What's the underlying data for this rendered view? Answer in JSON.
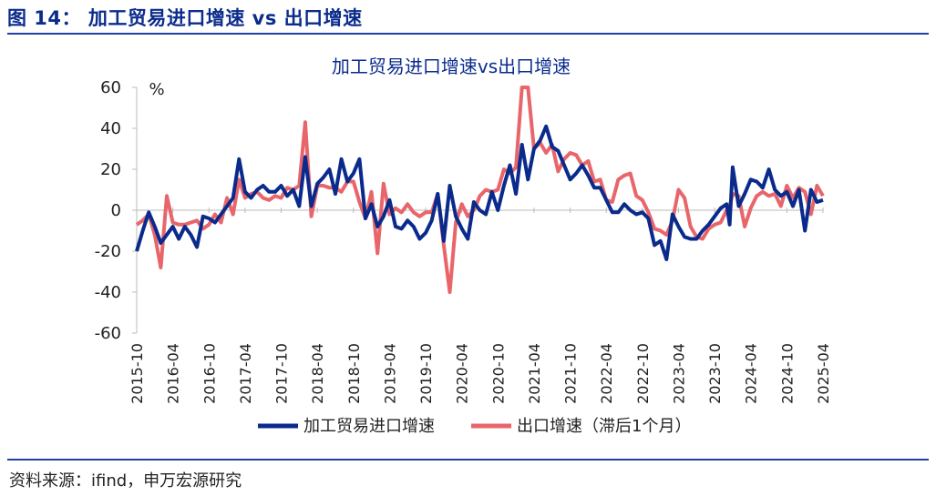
{
  "figure_title": "图 14：  加工贸易进口增速 vs 出口增速",
  "source": "资料来源：ifind，申万宏源研究",
  "chart_data": {
    "type": "line",
    "title": "加工贸易进口增速vs出口增速",
    "unit_label": "%",
    "ylim": [
      -60,
      60
    ],
    "yticks": [
      60,
      40,
      20,
      0,
      -20,
      -40,
      -60
    ],
    "xlim": [
      "2015-10",
      "2025-04"
    ],
    "xticks": [
      "2015-10",
      "2016-04",
      "2016-10",
      "2017-04",
      "2017-10",
      "2018-04",
      "2018-10",
      "2019-04",
      "2019-10",
      "2020-04",
      "2020-10",
      "2021-04",
      "2021-10",
      "2022-04",
      "2022-10",
      "2023-04",
      "2023-10",
      "2024-04",
      "2024-10",
      "2025-04"
    ],
    "grid": false,
    "legend_position": "bottom",
    "series": [
      {
        "name": "加工贸易进口增速",
        "color": "#0a2a8c",
        "data": [
          [
            "2015-10",
            -20
          ],
          [
            "2015-11",
            -10
          ],
          [
            "2015-12",
            -1
          ],
          [
            "2016-01",
            -8
          ],
          [
            "2016-02",
            -16
          ],
          [
            "2016-03",
            -12
          ],
          [
            "2016-04",
            -8
          ],
          [
            "2016-05",
            -14
          ],
          [
            "2016-06",
            -8
          ],
          [
            "2016-07",
            -12
          ],
          [
            "2016-08",
            -18
          ],
          [
            "2016-09",
            -3
          ],
          [
            "2016-10",
            -4
          ],
          [
            "2016-11",
            -6
          ],
          [
            "2016-12",
            -2
          ],
          [
            "2017-01",
            2
          ],
          [
            "2017-02",
            6
          ],
          [
            "2017-03",
            25
          ],
          [
            "2017-04",
            9
          ],
          [
            "2017-05",
            6
          ],
          [
            "2017-06",
            10
          ],
          [
            "2017-07",
            12
          ],
          [
            "2017-08",
            9
          ],
          [
            "2017-09",
            9
          ],
          [
            "2017-10",
            12
          ],
          [
            "2017-11",
            7
          ],
          [
            "2017-12",
            10
          ],
          [
            "2018-01",
            2
          ],
          [
            "2018-02",
            26
          ],
          [
            "2018-03",
            2
          ],
          [
            "2018-04",
            13
          ],
          [
            "2018-05",
            16
          ],
          [
            "2018-06",
            20
          ],
          [
            "2018-07",
            8
          ],
          [
            "2018-08",
            25
          ],
          [
            "2018-09",
            14
          ],
          [
            "2018-10",
            18
          ],
          [
            "2018-11",
            25
          ],
          [
            "2018-12",
            -4
          ],
          [
            "2019-01",
            3
          ],
          [
            "2019-02",
            -8
          ],
          [
            "2019-03",
            -3
          ],
          [
            "2019-04",
            5
          ],
          [
            "2019-05",
            -8
          ],
          [
            "2019-06",
            -9
          ],
          [
            "2019-07",
            -5
          ],
          [
            "2019-08",
            -8
          ],
          [
            "2019-09",
            -14
          ],
          [
            "2019-10",
            -11
          ],
          [
            "2019-11",
            -5
          ],
          [
            "2019-12",
            8
          ],
          [
            "2020-01",
            -15
          ],
          [
            "2020-02",
            12
          ],
          [
            "2020-03",
            -3
          ],
          [
            "2020-04",
            -9
          ],
          [
            "2020-05",
            -14
          ],
          [
            "2020-06",
            4
          ],
          [
            "2020-07",
            0
          ],
          [
            "2020-08",
            -2
          ],
          [
            "2020-09",
            9
          ],
          [
            "2020-10",
            0
          ],
          [
            "2020-11",
            12
          ],
          [
            "2020-12",
            22
          ],
          [
            "2021-01",
            8
          ],
          [
            "2021-02",
            32
          ],
          [
            "2021-03",
            15
          ],
          [
            "2021-04",
            30
          ],
          [
            "2021-05",
            34
          ],
          [
            "2021-06",
            41
          ],
          [
            "2021-07",
            31
          ],
          [
            "2021-08",
            29
          ],
          [
            "2021-09",
            22
          ],
          [
            "2021-10",
            15
          ],
          [
            "2021-11",
            18
          ],
          [
            "2021-12",
            22
          ],
          [
            "2022-01",
            17
          ],
          [
            "2022-02",
            11
          ],
          [
            "2022-03",
            11
          ],
          [
            "2022-04",
            5
          ],
          [
            "2022-05",
            -1
          ],
          [
            "2022-06",
            -1
          ],
          [
            "2022-07",
            3
          ],
          [
            "2022-08",
            0
          ],
          [
            "2022-09",
            -2
          ],
          [
            "2022-10",
            -1
          ],
          [
            "2022-11",
            -4
          ],
          [
            "2022-12",
            -17
          ],
          [
            "2023-01",
            -15
          ],
          [
            "2023-02",
            -24
          ],
          [
            "2023-03",
            -2
          ],
          [
            "2023-04",
            -8
          ],
          [
            "2023-05",
            -13
          ],
          [
            "2023-06",
            -14
          ],
          [
            "2023-07",
            -14
          ],
          [
            "2023-08",
            -10
          ],
          [
            "2023-09",
            -7
          ],
          [
            "2023-10",
            -3
          ],
          [
            "2023-11",
            1
          ],
          [
            "2023-12",
            3
          ],
          [
            "2023-12b",
            -7
          ],
          [
            "2024-01",
            21
          ],
          [
            "2024-02",
            2
          ],
          [
            "2024-03",
            8
          ],
          [
            "2024-04",
            15
          ],
          [
            "2024-05",
            14
          ],
          [
            "2024-06",
            11
          ],
          [
            "2024-07",
            20
          ],
          [
            "2024-08",
            10
          ],
          [
            "2024-09",
            7
          ],
          [
            "2024-10",
            9
          ],
          [
            "2024-11",
            2
          ],
          [
            "2024-12",
            10
          ],
          [
            "2025-01",
            -10
          ],
          [
            "2025-02",
            10
          ],
          [
            "2025-03",
            4
          ],
          [
            "2025-04",
            5
          ]
        ]
      },
      {
        "name": "出口增速（滞后1个月）",
        "color": "#e8666b",
        "data": [
          [
            "2015-10",
            -7
          ],
          [
            "2015-11",
            -5
          ],
          [
            "2015-12",
            -2
          ],
          [
            "2016-01",
            -12
          ],
          [
            "2016-02",
            -28
          ],
          [
            "2016-03",
            7
          ],
          [
            "2016-04",
            -6
          ],
          [
            "2016-05",
            -7
          ],
          [
            "2016-06",
            -7
          ],
          [
            "2016-07",
            -6
          ],
          [
            "2016-08",
            -5
          ],
          [
            "2016-09",
            -9
          ],
          [
            "2016-10",
            -7
          ],
          [
            "2016-11",
            -2
          ],
          [
            "2016-12",
            -6
          ],
          [
            "2017-01",
            6
          ],
          [
            "2017-02",
            -2
          ],
          [
            "2017-03",
            15
          ],
          [
            "2017-04",
            6
          ],
          [
            "2017-05",
            8
          ],
          [
            "2017-06",
            9
          ],
          [
            "2017-07",
            6
          ],
          [
            "2017-08",
            5
          ],
          [
            "2017-09",
            7
          ],
          [
            "2017-10",
            6
          ],
          [
            "2017-11",
            11
          ],
          [
            "2017-12",
            10
          ],
          [
            "2018-01",
            12
          ],
          [
            "2018-02",
            43
          ],
          [
            "2018-03",
            -3
          ],
          [
            "2018-04",
            12
          ],
          [
            "2018-05",
            12
          ],
          [
            "2018-06",
            11
          ],
          [
            "2018-07",
            11
          ],
          [
            "2018-08",
            9
          ],
          [
            "2018-09",
            14
          ],
          [
            "2018-10",
            14
          ],
          [
            "2018-11",
            4
          ],
          [
            "2018-12",
            -4
          ],
          [
            "2019-01",
            9
          ],
          [
            "2019-02",
            -21
          ],
          [
            "2019-03",
            13
          ],
          [
            "2019-04",
            -2
          ],
          [
            "2019-05",
            1
          ],
          [
            "2019-06",
            -1
          ],
          [
            "2019-07",
            3
          ],
          [
            "2019-08",
            -1
          ],
          [
            "2019-09",
            -3
          ],
          [
            "2019-10",
            -1
          ],
          [
            "2019-11",
            -1
          ],
          [
            "2019-12",
            8
          ],
          [
            "2020-01",
            -17
          ],
          [
            "2020-02",
            -40
          ],
          [
            "2020-03",
            -6
          ],
          [
            "2020-04",
            3
          ],
          [
            "2020-05",
            -3
          ],
          [
            "2020-06",
            0
          ],
          [
            "2020-07",
            7
          ],
          [
            "2020-08",
            10
          ],
          [
            "2020-09",
            9
          ],
          [
            "2020-10",
            10
          ],
          [
            "2020-11",
            20
          ],
          [
            "2020-12",
            18
          ],
          [
            "2021-01",
            21
          ],
          [
            "2021-02",
            60
          ],
          [
            "2021-03",
            60
          ],
          [
            "2021-04",
            30
          ],
          [
            "2021-05",
            33
          ],
          [
            "2021-06",
            28
          ],
          [
            "2021-07",
            32
          ],
          [
            "2021-08",
            19
          ],
          [
            "2021-09",
            25
          ],
          [
            "2021-10",
            28
          ],
          [
            "2021-11",
            27
          ],
          [
            "2021-12",
            22
          ],
          [
            "2022-01",
            24
          ],
          [
            "2022-02",
            14
          ],
          [
            "2022-03",
            15
          ],
          [
            "2022-04",
            5
          ],
          [
            "2022-05",
            4
          ],
          [
            "2022-06",
            15
          ],
          [
            "2022-07",
            17
          ],
          [
            "2022-08",
            18
          ],
          [
            "2022-09",
            7
          ],
          [
            "2022-10",
            5
          ],
          [
            "2022-11",
            -1
          ],
          [
            "2022-12",
            -9
          ],
          [
            "2023-01",
            -10
          ],
          [
            "2023-02",
            -12
          ],
          [
            "2023-03",
            -5
          ],
          [
            "2023-04",
            10
          ],
          [
            "2023-05",
            6
          ],
          [
            "2023-06",
            -8
          ],
          [
            "2023-07",
            -13
          ],
          [
            "2023-08",
            -14
          ],
          [
            "2023-09",
            -9
          ],
          [
            "2023-10",
            -7
          ],
          [
            "2023-11",
            -6
          ],
          [
            "2023-12",
            0
          ],
          [
            "2023-12b",
            2
          ],
          [
            "2024-01",
            8
          ],
          [
            "2024-02",
            7
          ],
          [
            "2024-03",
            -8
          ],
          [
            "2024-04",
            1
          ],
          [
            "2024-05",
            7
          ],
          [
            "2024-06",
            9
          ],
          [
            "2024-07",
            7
          ],
          [
            "2024-08",
            8
          ],
          [
            "2024-09",
            2
          ],
          [
            "2024-10",
            12
          ],
          [
            "2024-11",
            6
          ],
          [
            "2024-12",
            11
          ],
          [
            "2025-01",
            9
          ],
          [
            "2025-02",
            -2
          ],
          [
            "2025-03",
            12
          ],
          [
            "2025-04",
            7
          ]
        ]
      }
    ]
  }
}
